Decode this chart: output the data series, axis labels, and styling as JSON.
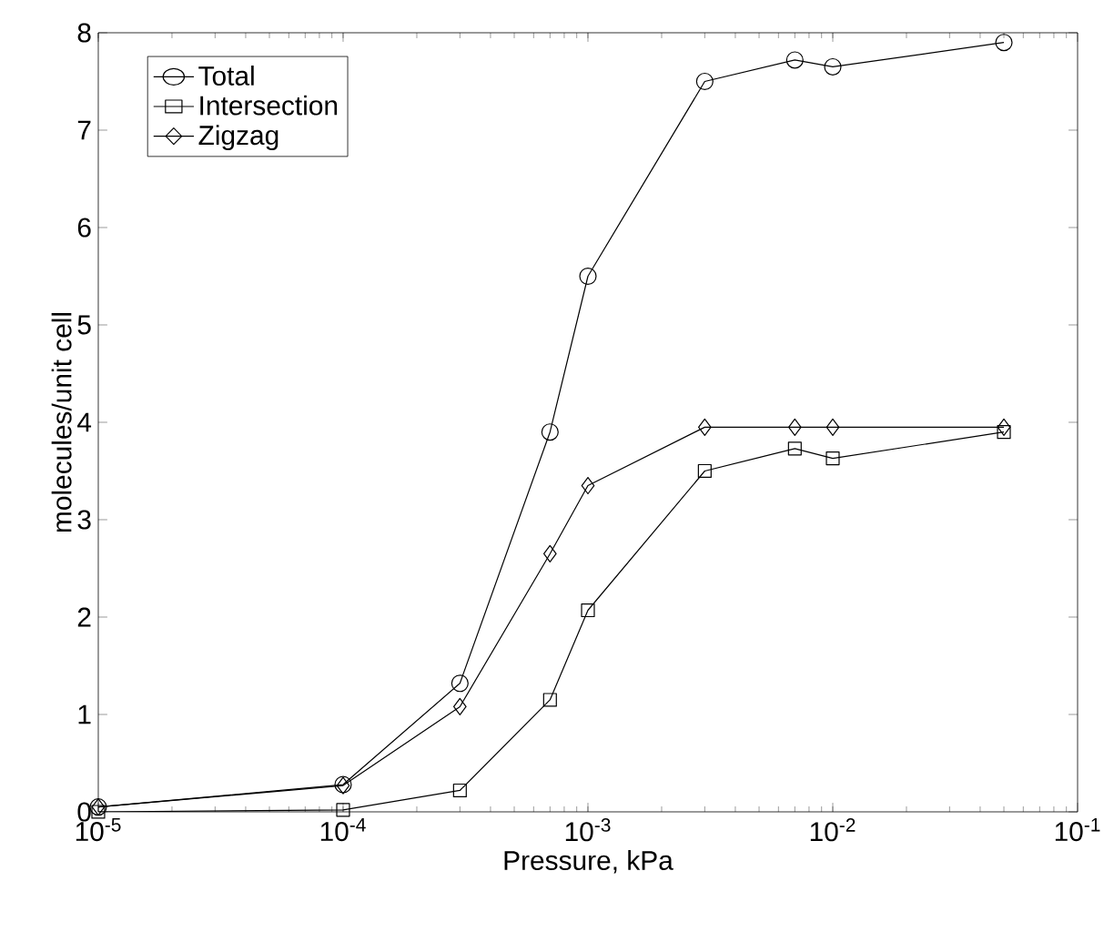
{
  "chart_data": {
    "type": "line",
    "xlabel": "Pressure, kPa",
    "ylabel": "molecules/unit cell",
    "log": "x",
    "grid": false,
    "legend": "top left",
    "line_style": "solid",
    "x": [
      1e-05,
      0.0001,
      0.0003,
      0.0007,
      0.001,
      0.003,
      0.007,
      0.01,
      0.05
    ],
    "xlim": [
      1e-05,
      0.1
    ],
    "xticks": [
      {
        "value": 1e-05,
        "label": "10$^{-5}$"
      },
      {
        "value": 0.0001,
        "label": "10$^{-4}$"
      },
      {
        "value": 0.001,
        "label": "10$^{-3}$"
      },
      {
        "value": 0.01,
        "label": "10$^{-2}$"
      },
      {
        "value": 0.1,
        "label": "10$^{-1}$"
      }
    ],
    "ylim": [
      0,
      8
    ],
    "yticks": [
      0,
      1,
      2,
      3,
      4,
      5,
      6,
      7,
      8
    ],
    "series": [
      {
        "name": "Total",
        "color": "#000000",
        "marker": "circle",
        "values": [
          0.05,
          0.28,
          1.32,
          3.9,
          5.5,
          7.5,
          7.72,
          7.65,
          7.9
        ]
      },
      {
        "name": "Intersection",
        "color": "#000000",
        "marker": "square",
        "values": [
          0.0,
          0.02,
          0.22,
          1.15,
          2.07,
          3.5,
          3.73,
          3.63,
          3.9
        ]
      },
      {
        "name": "Zigzag",
        "color": "#000000",
        "marker": "diamond",
        "values": [
          0.05,
          0.27,
          1.08,
          2.65,
          3.35,
          3.95,
          3.95,
          3.95,
          3.95
        ]
      }
    ]
  }
}
